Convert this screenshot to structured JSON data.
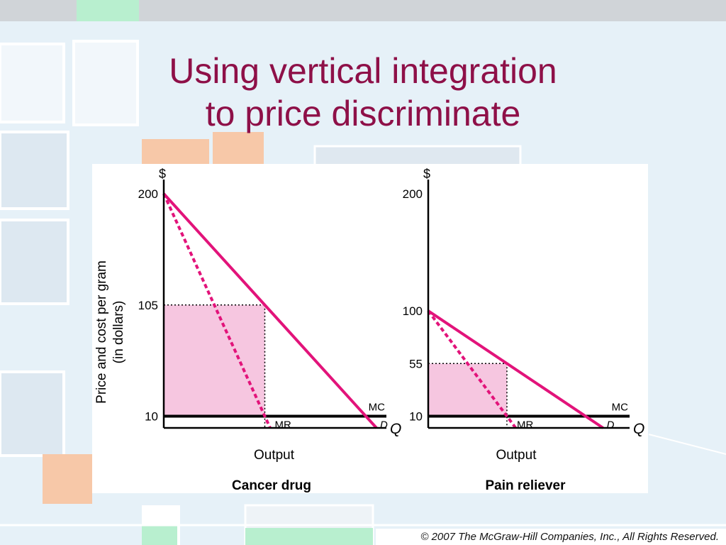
{
  "slide": {
    "title_line1": "Using vertical integration",
    "title_line2": "to price discriminate",
    "copyright": "© 2007 The McGraw-Hill Companies, Inc., All Rights Reserved."
  },
  "colors": {
    "title": "#8e1048",
    "curve": "#e2137a",
    "shade": "#f6c6e0",
    "background": "#e6f1f8"
  },
  "chart_data": [
    {
      "type": "line",
      "caption": "Cancer drug",
      "ylabel_line1": "Price and cost per gram",
      "ylabel_line2": "(in dollars)",
      "y_unit": "$",
      "x_axis": "Q",
      "x_label": "Output",
      "ylim": [
        0,
        200
      ],
      "y_ticks": [
        200,
        105,
        10
      ],
      "demand": {
        "name": "D",
        "intercept": 200,
        "slope": -1
      },
      "marginal_revenue": {
        "name": "MR",
        "intercept": 200,
        "slope": -2
      },
      "marginal_cost": {
        "name": "MC",
        "value": 10
      },
      "optimum": {
        "quantity": 95,
        "price": 105
      },
      "profit_region": {
        "price": 105,
        "cost": 10,
        "quantity": 95
      }
    },
    {
      "type": "line",
      "caption": "Pain reliever",
      "y_unit": "$",
      "x_axis": "Q",
      "x_label": "Output",
      "ylim": [
        0,
        200
      ],
      "y_ticks": [
        200,
        100,
        55,
        10
      ],
      "demand": {
        "name": "D",
        "intercept": 100,
        "slope": -0.5
      },
      "marginal_revenue": {
        "name": "MR",
        "intercept": 100,
        "slope": -1
      },
      "marginal_cost": {
        "name": "MC",
        "value": 10
      },
      "optimum": {
        "quantity": 90,
        "price": 55
      },
      "profit_region": {
        "price": 55,
        "cost": 10,
        "quantity": 90
      }
    }
  ]
}
